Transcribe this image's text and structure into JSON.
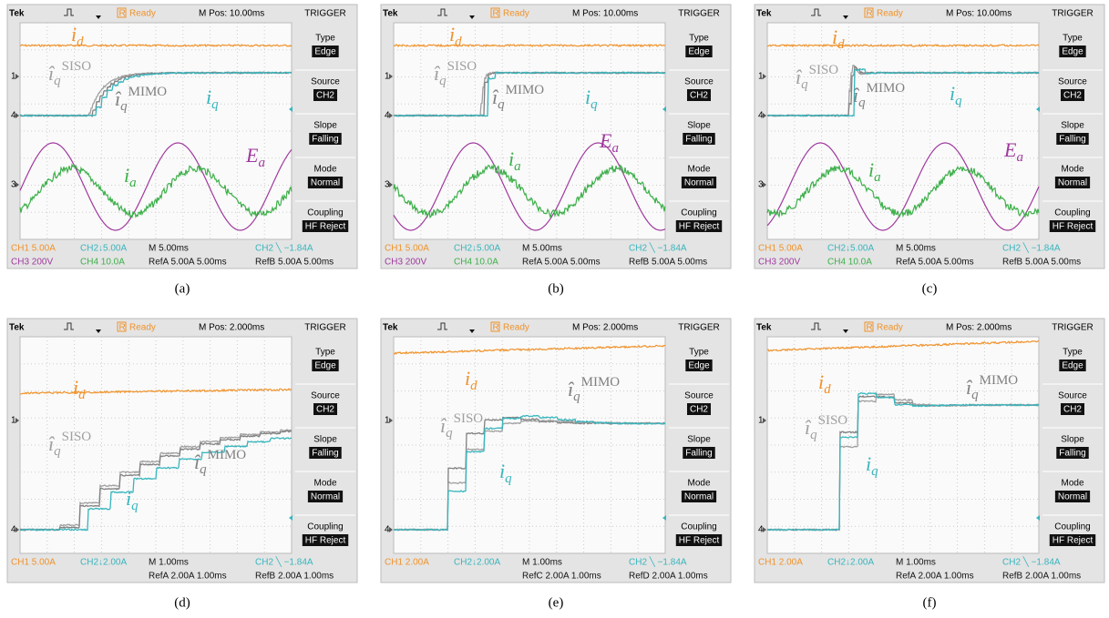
{
  "panels": [
    {
      "header": {
        "brand": "Tek",
        "run_icon": "R",
        "status": "Ready",
        "position": "M Pos: 10.00ms",
        "menu_title": "TRIGGER"
      },
      "menu": [
        {
          "label": "Type",
          "value": "Edge"
        },
        {
          "label": "Source",
          "value": "CH2"
        },
        {
          "label": "Slope",
          "value": "Falling"
        },
        {
          "label": "Mode",
          "value": "Normal"
        },
        {
          "label": "Coupling",
          "value": "HF Reject"
        }
      ],
      "markers": [
        "1",
        "4",
        "3"
      ],
      "readout": [
        [
          {
            "text": "CH1  5.00A",
            "color": "#f0922a"
          },
          {
            "text": "CH2↓5.00A",
            "color": "#37b5bd"
          },
          {
            "text": "M 5.00ms",
            "color": "#111"
          },
          {
            "text": "CH2 ╲ −1.84A",
            "color": "#37b5bd"
          }
        ],
        [
          {
            "text": "CH3  200V",
            "color": "#a0399e"
          },
          {
            "text": "CH4  10.0A",
            "color": "#3daf4a"
          },
          {
            "text": "RefA 5.00A 5.00ms",
            "color": "#111"
          },
          {
            "text": "RefB 5.00A 5.00ms",
            "color": "#111"
          }
        ]
      ],
      "labels": [
        {
          "base": "i",
          "sub": "d",
          "color": "#f0922a"
        },
        {
          "base": "î",
          "sub": "q",
          "sup": "SISO",
          "color": "#a0a0a0"
        },
        {
          "base": "î",
          "sub": "q",
          "sup": "MIMO",
          "color": "#808080"
        },
        {
          "base": "i",
          "sub": "q",
          "color": "#37b5bd"
        },
        {
          "base": "E",
          "sub": "a",
          "color": "#a0399e"
        },
        {
          "base": "i",
          "sub": "a",
          "color": "#3daf4a"
        }
      ],
      "caption": "(a)"
    },
    {
      "header": {
        "brand": "Tek",
        "run_icon": "R",
        "status": "Ready",
        "position": "M Pos: 10.00ms",
        "menu_title": "TRIGGER"
      },
      "menu": [
        {
          "label": "Type",
          "value": "Edge"
        },
        {
          "label": "Source",
          "value": "CH2"
        },
        {
          "label": "Slope",
          "value": "Falling"
        },
        {
          "label": "Mode",
          "value": "Normal"
        },
        {
          "label": "Coupling",
          "value": "HF Reject"
        }
      ],
      "markers": [
        "1",
        "4",
        "3"
      ],
      "readout": [
        [
          {
            "text": "CH1  5.00A",
            "color": "#f0922a"
          },
          {
            "text": "CH2↓5.00A",
            "color": "#37b5bd"
          },
          {
            "text": "M 5.00ms",
            "color": "#111"
          },
          {
            "text": "CH2 ╲ −1.84A",
            "color": "#37b5bd"
          }
        ],
        [
          {
            "text": "CH3  200V",
            "color": "#a0399e"
          },
          {
            "text": "CH4  10.0A",
            "color": "#3daf4a"
          },
          {
            "text": "RefA 5.00A 5.00ms",
            "color": "#111"
          },
          {
            "text": "RefB 5.00A 5.00ms",
            "color": "#111"
          }
        ]
      ],
      "labels": [
        {
          "base": "i",
          "sub": "d",
          "color": "#f0922a"
        },
        {
          "base": "î",
          "sub": "q",
          "sup": "SISO",
          "color": "#a0a0a0"
        },
        {
          "base": "î",
          "sub": "q",
          "sup": "MIMO",
          "color": "#808080"
        },
        {
          "base": "i",
          "sub": "q",
          "color": "#37b5bd"
        },
        {
          "base": "E",
          "sub": "a",
          "color": "#a0399e"
        },
        {
          "base": "i",
          "sub": "a",
          "color": "#3daf4a"
        }
      ],
      "caption": "(b)"
    },
    {
      "header": {
        "brand": "Tek",
        "run_icon": "R",
        "status": "Ready",
        "position": "M Pos: 10.00ms",
        "menu_title": "TRIGGER"
      },
      "menu": [
        {
          "label": "Type",
          "value": "Edge"
        },
        {
          "label": "Source",
          "value": "CH2"
        },
        {
          "label": "Slope",
          "value": "Falling"
        },
        {
          "label": "Mode",
          "value": "Normal"
        },
        {
          "label": "Coupling",
          "value": "HF Reject"
        }
      ],
      "markers": [
        "1",
        "4",
        "3"
      ],
      "readout": [
        [
          {
            "text": "CH1  5.00A",
            "color": "#f0922a"
          },
          {
            "text": "CH2↓5.00A",
            "color": "#37b5bd"
          },
          {
            "text": "M 5.00ms",
            "color": "#111"
          },
          {
            "text": "CH2 ╲ −1.84A",
            "color": "#37b5bd"
          }
        ],
        [
          {
            "text": "CH3  200V",
            "color": "#a0399e"
          },
          {
            "text": "CH4  10.0A",
            "color": "#3daf4a"
          },
          {
            "text": "RefA 5.00A 5.00ms",
            "color": "#111"
          },
          {
            "text": "RefB 5.00A 5.00ms",
            "color": "#111"
          }
        ]
      ],
      "labels": [
        {
          "base": "i",
          "sub": "d",
          "color": "#f0922a"
        },
        {
          "base": "î",
          "sub": "q",
          "sup": "SISO",
          "color": "#a0a0a0"
        },
        {
          "base": "î",
          "sub": "q",
          "sup": "MIMO",
          "color": "#808080"
        },
        {
          "base": "i",
          "sub": "q",
          "color": "#37b5bd"
        },
        {
          "base": "E",
          "sub": "a",
          "color": "#a0399e"
        },
        {
          "base": "i",
          "sub": "a",
          "color": "#3daf4a"
        }
      ],
      "caption": "(c)"
    },
    {
      "header": {
        "brand": "Tek",
        "run_icon": "R",
        "status": "Ready",
        "position": "M Pos: 2.000ms",
        "menu_title": "TRIGGER"
      },
      "menu": [
        {
          "label": "Type",
          "value": "Edge"
        },
        {
          "label": "Source",
          "value": "CH2"
        },
        {
          "label": "Slope",
          "value": "Falling"
        },
        {
          "label": "Mode",
          "value": "Normal"
        },
        {
          "label": "Coupling",
          "value": "HF Reject"
        }
      ],
      "markers": [
        "1",
        "4"
      ],
      "readout": [
        [
          {
            "text": "CH1  5.00A",
            "color": "#f0922a"
          },
          {
            "text": "CH2↓2.00A",
            "color": "#37b5bd"
          },
          {
            "text": "M 1.00ms",
            "color": "#111"
          },
          {
            "text": "CH2 ╲ −1.84A",
            "color": "#37b5bd"
          }
        ],
        [
          {
            "text": "RefA 2.00A 1.00ms",
            "color": "#111"
          },
          {
            "text": "RefB 2.00A 1.00ms",
            "color": "#111"
          }
        ]
      ],
      "labels": [
        {
          "base": "i",
          "sub": "d",
          "color": "#f0922a"
        },
        {
          "base": "î",
          "sub": "q",
          "sup": "SISO",
          "color": "#a0a0a0"
        },
        {
          "base": "î",
          "sub": "q",
          "sup": "MIMO",
          "color": "#808080"
        },
        {
          "base": "i",
          "sub": "q",
          "color": "#37b5bd"
        }
      ],
      "caption": "(d)"
    },
    {
      "header": {
        "brand": "Tek",
        "run_icon": "R",
        "status": "Ready",
        "position": "M Pos: 2.000ms",
        "menu_title": "TRIGGER"
      },
      "menu": [
        {
          "label": "Type",
          "value": "Edge"
        },
        {
          "label": "Source",
          "value": "CH2"
        },
        {
          "label": "Slope",
          "value": "Falling"
        },
        {
          "label": "Mode",
          "value": "Normal"
        },
        {
          "label": "Coupling",
          "value": "HF Reject"
        }
      ],
      "markers": [
        "1",
        "4"
      ],
      "readout": [
        [
          {
            "text": "CH1  2.00A",
            "color": "#f0922a"
          },
          {
            "text": "CH2↓2.00A",
            "color": "#37b5bd"
          },
          {
            "text": "M 1.00ms",
            "color": "#111"
          },
          {
            "text": "CH2 ╲ −1.84A",
            "color": "#37b5bd"
          }
        ],
        [
          {
            "text": "RefC 2.00A 1.00ms",
            "color": "#111"
          },
          {
            "text": "RefD 2.00A 1.00ms",
            "color": "#111"
          }
        ]
      ],
      "labels": [
        {
          "base": "i",
          "sub": "d",
          "color": "#f0922a"
        },
        {
          "base": "î",
          "sub": "q",
          "sup": "MIMO",
          "color": "#808080"
        },
        {
          "base": "î",
          "sub": "q",
          "sup": "SISO",
          "color": "#a0a0a0"
        },
        {
          "base": "i",
          "sub": "q",
          "color": "#37b5bd"
        }
      ],
      "caption": "(e)"
    },
    {
      "header": {
        "brand": "Tek",
        "run_icon": "R",
        "status": "Ready",
        "position": "M Pos: 2.000ms",
        "menu_title": "TRIGGER"
      },
      "menu": [
        {
          "label": "Type",
          "value": "Edge"
        },
        {
          "label": "Source",
          "value": "CH2"
        },
        {
          "label": "Slope",
          "value": "Falling"
        },
        {
          "label": "Mode",
          "value": "Normal"
        },
        {
          "label": "Coupling",
          "value": "HF Reject"
        }
      ],
      "markers": [
        "1",
        "4"
      ],
      "readout": [
        [
          {
            "text": "CH1  2.00A",
            "color": "#f0922a"
          },
          {
            "text": "CH2↓2.00A",
            "color": "#37b5bd"
          },
          {
            "text": "M 1.00ms",
            "color": "#111"
          },
          {
            "text": "CH2 ╲ −1.84A",
            "color": "#37b5bd"
          }
        ],
        [
          {
            "text": "RefA 2.00A 1.00ms",
            "color": "#111"
          },
          {
            "text": "RefB 2.00A 1.00ms",
            "color": "#111"
          }
        ]
      ],
      "labels": [
        {
          "base": "i",
          "sub": "d",
          "color": "#f0922a"
        },
        {
          "base": "î",
          "sub": "q",
          "sup": "MIMO",
          "color": "#808080"
        },
        {
          "base": "î",
          "sub": "q",
          "sup": "SISO",
          "color": "#a0a0a0"
        },
        {
          "base": "i",
          "sub": "q",
          "color": "#37b5bd"
        }
      ],
      "caption": "(f)"
    }
  ]
}
